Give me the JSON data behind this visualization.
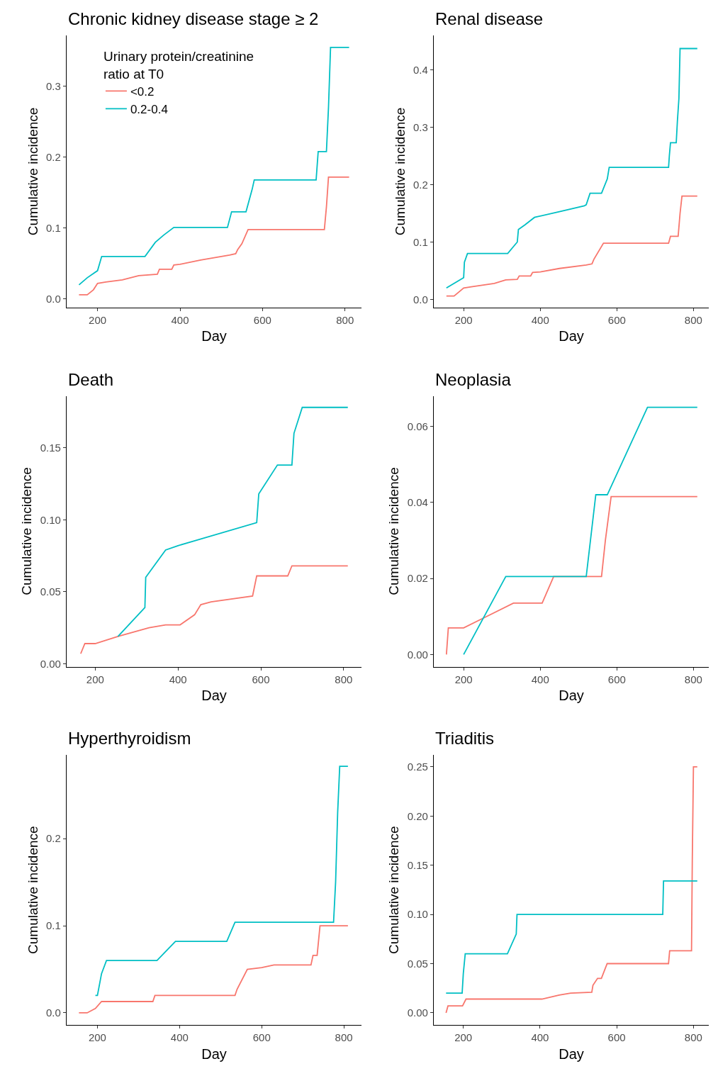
{
  "chart_data": [
    {
      "type": "line",
      "title": "Chronic kidney disease stage ≥ 2",
      "xlabel": "Day",
      "ylabel": "Cumulative incidence",
      "legend_title": "Urinary protein/creatinine\nratio at T0",
      "legend": "top left",
      "grid": false,
      "xlim": [
        125,
        840
      ],
      "xticks": [
        200,
        400,
        600,
        800
      ],
      "ylim": [
        -0.012,
        0.372
      ],
      "yticks": [
        {
          "value": 0,
          "label": "0.0"
        },
        0.1,
        0.2,
        0.3
      ],
      "series": [
        {
          "name": "<0.2",
          "color": "#f8766d",
          "x": [
            155,
            175,
            190,
            200,
            220,
            260,
            300,
            345,
            350,
            380,
            385,
            400,
            450,
            520,
            535,
            540,
            550,
            565,
            750,
            755,
            760,
            810
          ],
          "values": [
            0.006,
            0.006,
            0.013,
            0.022,
            0.024,
            0.027,
            0.033,
            0.035,
            0.042,
            0.042,
            0.048,
            0.049,
            0.055,
            0.062,
            0.064,
            0.07,
            0.078,
            0.098,
            0.098,
            0.13,
            0.172,
            0.172
          ]
        },
        {
          "name": "0.2-0.4",
          "color": "#00bfc4",
          "x": [
            155,
            175,
            200,
            210,
            315,
            340,
            360,
            385,
            515,
            525,
            560,
            575,
            580,
            730,
            735,
            755,
            760,
            765,
            810
          ],
          "values": [
            0.02,
            0.03,
            0.04,
            0.06,
            0.06,
            0.08,
            0.09,
            0.101,
            0.101,
            0.123,
            0.123,
            0.155,
            0.168,
            0.168,
            0.208,
            0.208,
            0.27,
            0.355,
            0.355
          ]
        }
      ]
    },
    {
      "type": "line",
      "title": "Renal disease",
      "xlabel": "Day",
      "ylabel": "Cumulative incidence",
      "grid": false,
      "xlim": [
        122,
        840
      ],
      "xticks": [
        200,
        400,
        600,
        800
      ],
      "ylim": [
        -0.014,
        0.46
      ],
      "yticks": [
        {
          "value": 0,
          "label": "0.0"
        },
        0.1,
        0.2,
        0.3,
        0.4
      ],
      "series": [
        {
          "color": "#f8766d",
          "x": [
            155,
            175,
            200,
            220,
            280,
            310,
            340,
            345,
            375,
            380,
            400,
            450,
            520,
            535,
            540,
            565,
            735,
            740,
            760,
            765,
            770,
            810
          ],
          "values": [
            0.006,
            0.006,
            0.02,
            0.022,
            0.028,
            0.034,
            0.035,
            0.041,
            0.041,
            0.047,
            0.048,
            0.054,
            0.06,
            0.062,
            0.07,
            0.098,
            0.098,
            0.11,
            0.11,
            0.15,
            0.18,
            0.18
          ]
        },
        {
          "color": "#00bfc4",
          "x": [
            155,
            200,
            202,
            210,
            315,
            340,
            343,
            360,
            385,
            450,
            515,
            520,
            530,
            560,
            575,
            580,
            735,
            737,
            740,
            755,
            758,
            762,
            765,
            810
          ],
          "values": [
            0.02,
            0.038,
            0.065,
            0.08,
            0.08,
            0.1,
            0.122,
            0.13,
            0.143,
            0.153,
            0.163,
            0.165,
            0.185,
            0.185,
            0.21,
            0.23,
            0.23,
            0.25,
            0.273,
            0.273,
            0.31,
            0.35,
            0.437,
            0.437
          ]
        }
      ]
    },
    {
      "type": "line",
      "title": "Death",
      "xlabel": "Day",
      "ylabel": "Cumulative incidence",
      "grid": false,
      "xlim": [
        131,
        843
      ],
      "xticks": [
        200,
        400,
        600,
        800
      ],
      "ylim": [
        -0.002,
        0.186
      ],
      "yticks": [
        {
          "value": 0,
          "label": "0.00"
        },
        {
          "value": 0.05,
          "label": "0.05"
        },
        {
          "value": 0.1,
          "label": "0.10"
        },
        {
          "value": 0.15,
          "label": "0.15"
        }
      ],
      "series": [
        {
          "color": "#f8766d",
          "x": [
            165,
            175,
            200,
            255,
            330,
            370,
            405,
            440,
            455,
            480,
            580,
            590,
            665,
            675,
            810
          ],
          "values": [
            0.007,
            0.014,
            0.014,
            0.019,
            0.025,
            0.027,
            0.027,
            0.034,
            0.041,
            0.043,
            0.047,
            0.061,
            0.061,
            0.068,
            0.068
          ]
        },
        {
          "color": "#00bfc4",
          "x": [
            255,
            320,
            322,
            370,
            400,
            590,
            595,
            640,
            675,
            680,
            700,
            810
          ],
          "values": [
            0.019,
            0.039,
            0.06,
            0.079,
            0.082,
            0.098,
            0.118,
            0.138,
            0.138,
            0.16,
            0.178,
            0.178
          ]
        }
      ]
    },
    {
      "type": "line",
      "title": "Neoplasia",
      "xlabel": "Day",
      "ylabel": "Cumulative incidence",
      "grid": false,
      "xlim": [
        122,
        840
      ],
      "xticks": [
        200,
        400,
        600,
        800
      ],
      "ylim": [
        -0.0032,
        0.068
      ],
      "yticks": [
        {
          "value": 0,
          "label": "0.00"
        },
        {
          "value": 0.02,
          "label": "0.02"
        },
        {
          "value": 0.04,
          "label": "0.04"
        },
        {
          "value": 0.06,
          "label": "0.06"
        }
      ],
      "series": [
        {
          "color": "#f8766d",
          "x": [
            155,
            160,
            200,
            260,
            330,
            405,
            435,
            560,
            570,
            585,
            810
          ],
          "values": [
            0,
            0.007,
            0.007,
            0.01,
            0.0135,
            0.0135,
            0.0205,
            0.0205,
            0.03,
            0.0415,
            0.0415
          ]
        },
        {
          "color": "#00bfc4",
          "x": [
            200,
            310,
            520,
            545,
            575,
            680,
            810
          ],
          "values": [
            0,
            0.0205,
            0.0205,
            0.042,
            0.042,
            0.065,
            0.065
          ]
        }
      ]
    },
    {
      "type": "line",
      "title": "Hyperthyroidism",
      "xlabel": "Day",
      "ylabel": "Cumulative incidence",
      "grid": false,
      "xlim": [
        125,
        843
      ],
      "xticks": [
        200,
        400,
        600,
        800
      ],
      "ylim": [
        -0.014,
        0.296
      ],
      "yticks": [
        {
          "value": 0,
          "label": "0.0"
        },
        0.1,
        0.2
      ],
      "series": [
        {
          "color": "#f8766d",
          "x": [
            155,
            175,
            195,
            210,
            335,
            340,
            535,
            540,
            565,
            600,
            630,
            720,
            725,
            735,
            742,
            810
          ],
          "values": [
            0,
            0,
            0.005,
            0.013,
            0.013,
            0.02,
            0.02,
            0.027,
            0.05,
            0.052,
            0.055,
            0.055,
            0.066,
            0.066,
            0.1,
            0.1
          ]
        },
        {
          "color": "#00bfc4",
          "x": [
            195,
            200,
            210,
            222,
            345,
            390,
            515,
            535,
            775,
            780,
            785,
            790,
            810
          ],
          "values": [
            0.02,
            0.02,
            0.045,
            0.06,
            0.06,
            0.082,
            0.082,
            0.104,
            0.104,
            0.15,
            0.23,
            0.283,
            0.283
          ]
        }
      ]
    },
    {
      "type": "line",
      "title": "Triaditis",
      "xlabel": "Day",
      "ylabel": "Cumulative incidence",
      "grid": false,
      "xlim": [
        123,
        840
      ],
      "xticks": [
        200,
        400,
        600,
        800
      ],
      "ylim": [
        -0.0124,
        0.262
      ],
      "yticks": [
        {
          "value": 0,
          "label": "0.00"
        },
        {
          "value": 0.05,
          "label": "0.05"
        },
        {
          "value": 0.1,
          "label": "0.10"
        },
        {
          "value": 0.15,
          "label": "0.15"
        },
        {
          "value": 0.2,
          "label": "0.20"
        },
        0.25
      ],
      "series": [
        {
          "color": "#f8766d",
          "x": [
            155,
            160,
            198,
            207,
            405,
            450,
            480,
            535,
            538,
            550,
            560,
            575,
            735,
            738,
            795,
            797,
            800,
            810
          ],
          "values": [
            0,
            0.007,
            0.007,
            0.014,
            0.014,
            0.018,
            0.02,
            0.021,
            0.028,
            0.035,
            0.035,
            0.05,
            0.05,
            0.063,
            0.063,
            0.155,
            0.25,
            0.25
          ]
        },
        {
          "color": "#00bfc4",
          "x": [
            155,
            197,
            200,
            205,
            315,
            338,
            340,
            720,
            722,
            810
          ],
          "values": [
            0.02,
            0.02,
            0.04,
            0.06,
            0.06,
            0.08,
            0.1,
            0.1,
            0.134,
            0.134
          ]
        }
      ]
    }
  ]
}
